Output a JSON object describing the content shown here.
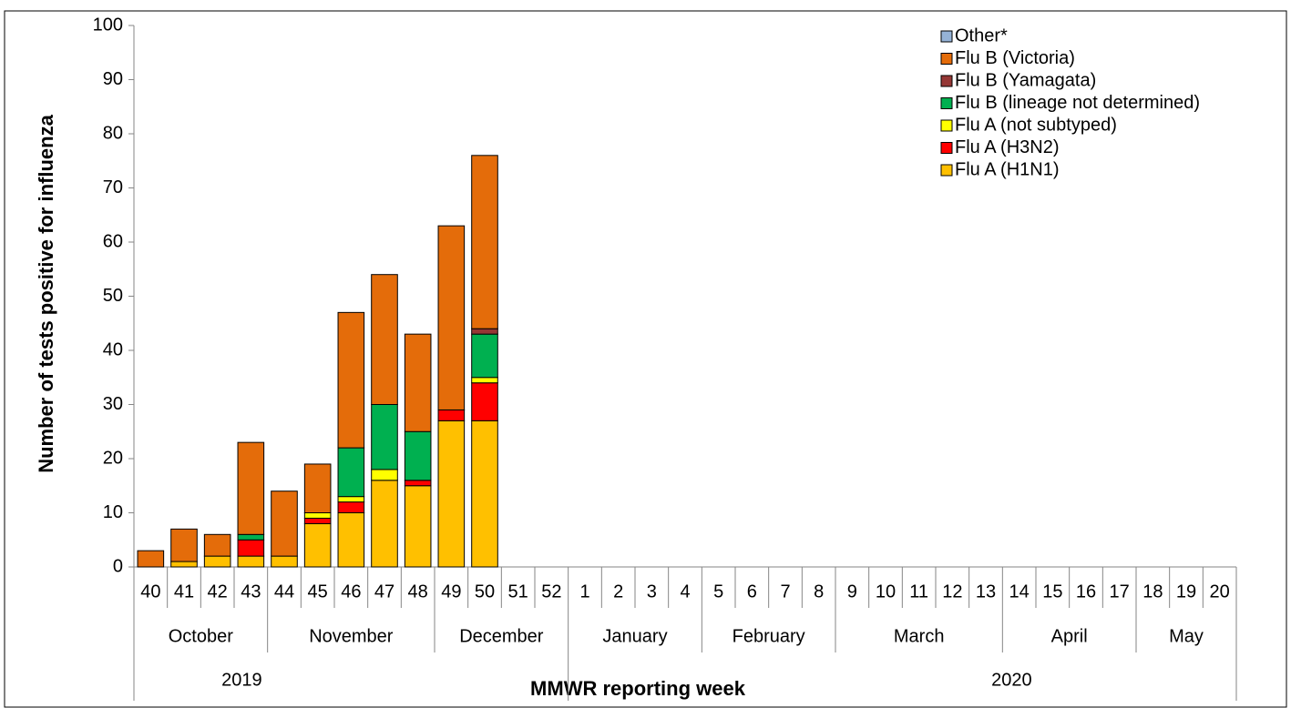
{
  "chart_data": {
    "type": "stacked_bar",
    "y_label": "Number of tests positive for influenza",
    "x_label": "MMWR reporting week",
    "categories": [
      "40",
      "41",
      "42",
      "43",
      "44",
      "45",
      "46",
      "47",
      "48",
      "49",
      "50",
      "51",
      "52",
      "1",
      "2",
      "3",
      "4",
      "5",
      "6",
      "7",
      "8",
      "9",
      "10",
      "11",
      "12",
      "13",
      "14",
      "15",
      "16",
      "17",
      "18",
      "19",
      "20"
    ],
    "category_months": [
      "October",
      "October",
      "October",
      "October",
      "November",
      "November",
      "November",
      "November",
      "November",
      "December",
      "December",
      "December",
      "December",
      "January",
      "January",
      "January",
      "January",
      "February",
      "February",
      "February",
      "February",
      "March",
      "March",
      "March",
      "March",
      "March",
      "April",
      "April",
      "April",
      "April",
      "May",
      "May",
      "May"
    ],
    "category_years": [
      "2019",
      "2019",
      "2019",
      "2019",
      "2019",
      "2019",
      "2019",
      "2019",
      "2019",
      "2019",
      "2019",
      "2019",
      "2019",
      "2020",
      "2020",
      "2020",
      "2020",
      "2020",
      "2020",
      "2020",
      "2020",
      "2020",
      "2020",
      "2020",
      "2020",
      "2020",
      "2020",
      "2020",
      "2020",
      "2020",
      "2020",
      "2020",
      "2020"
    ],
    "series": [
      {
        "name": "Flu A (H1N1)",
        "color": "#ffc000",
        "values": [
          0,
          1,
          2,
          2,
          2,
          8,
          10,
          16,
          15,
          27,
          27,
          null,
          null,
          null,
          null,
          null,
          null,
          null,
          null,
          null,
          null,
          null,
          null,
          null,
          null,
          null,
          null,
          null,
          null,
          null,
          null,
          null,
          null
        ]
      },
      {
        "name": "Flu A (H3N2)",
        "color": "#ff0000",
        "values": [
          0,
          0,
          0,
          3,
          0,
          1,
          2,
          0,
          1,
          2,
          7,
          null,
          null,
          null,
          null,
          null,
          null,
          null,
          null,
          null,
          null,
          null,
          null,
          null,
          null,
          null,
          null,
          null,
          null,
          null,
          null,
          null,
          null
        ]
      },
      {
        "name": "Flu A (not subtyped)",
        "color": "#ffff00",
        "values": [
          0,
          0,
          0,
          0,
          0,
          1,
          1,
          2,
          0,
          0,
          1,
          null,
          null,
          null,
          null,
          null,
          null,
          null,
          null,
          null,
          null,
          null,
          null,
          null,
          null,
          null,
          null,
          null,
          null,
          null,
          null,
          null,
          null
        ]
      },
      {
        "name": "Flu B (lineage not determined)",
        "color": "#00b050",
        "values": [
          0,
          0,
          0,
          1,
          0,
          0,
          9,
          12,
          9,
          0,
          8,
          null,
          null,
          null,
          null,
          null,
          null,
          null,
          null,
          null,
          null,
          null,
          null,
          null,
          null,
          null,
          null,
          null,
          null,
          null,
          null,
          null,
          null
        ]
      },
      {
        "name": "Flu B (Yamagata)",
        "color": "#953735",
        "values": [
          0,
          0,
          0,
          0,
          0,
          0,
          0,
          0,
          0,
          0,
          1,
          null,
          null,
          null,
          null,
          null,
          null,
          null,
          null,
          null,
          null,
          null,
          null,
          null,
          null,
          null,
          null,
          null,
          null,
          null,
          null,
          null,
          null
        ]
      },
      {
        "name": "Flu B (Victoria)",
        "color": "#e46c0a",
        "values": [
          3,
          6,
          4,
          17,
          12,
          9,
          25,
          24,
          18,
          34,
          32,
          null,
          null,
          null,
          null,
          null,
          null,
          null,
          null,
          null,
          null,
          null,
          null,
          null,
          null,
          null,
          null,
          null,
          null,
          null,
          null,
          null,
          null
        ]
      },
      {
        "name": "Other*",
        "color": "#95b3d7",
        "values": [
          0,
          0,
          0,
          0,
          0,
          0,
          0,
          0,
          0,
          0,
          0,
          null,
          null,
          null,
          null,
          null,
          null,
          null,
          null,
          null,
          null,
          null,
          null,
          null,
          null,
          null,
          null,
          null,
          null,
          null,
          null,
          null,
          null
        ]
      }
    ],
    "ylim": [
      0,
      100
    ],
    "yticks": [
      0,
      10,
      20,
      30,
      40,
      50,
      60,
      70,
      80,
      90,
      100
    ],
    "grid": false
  }
}
